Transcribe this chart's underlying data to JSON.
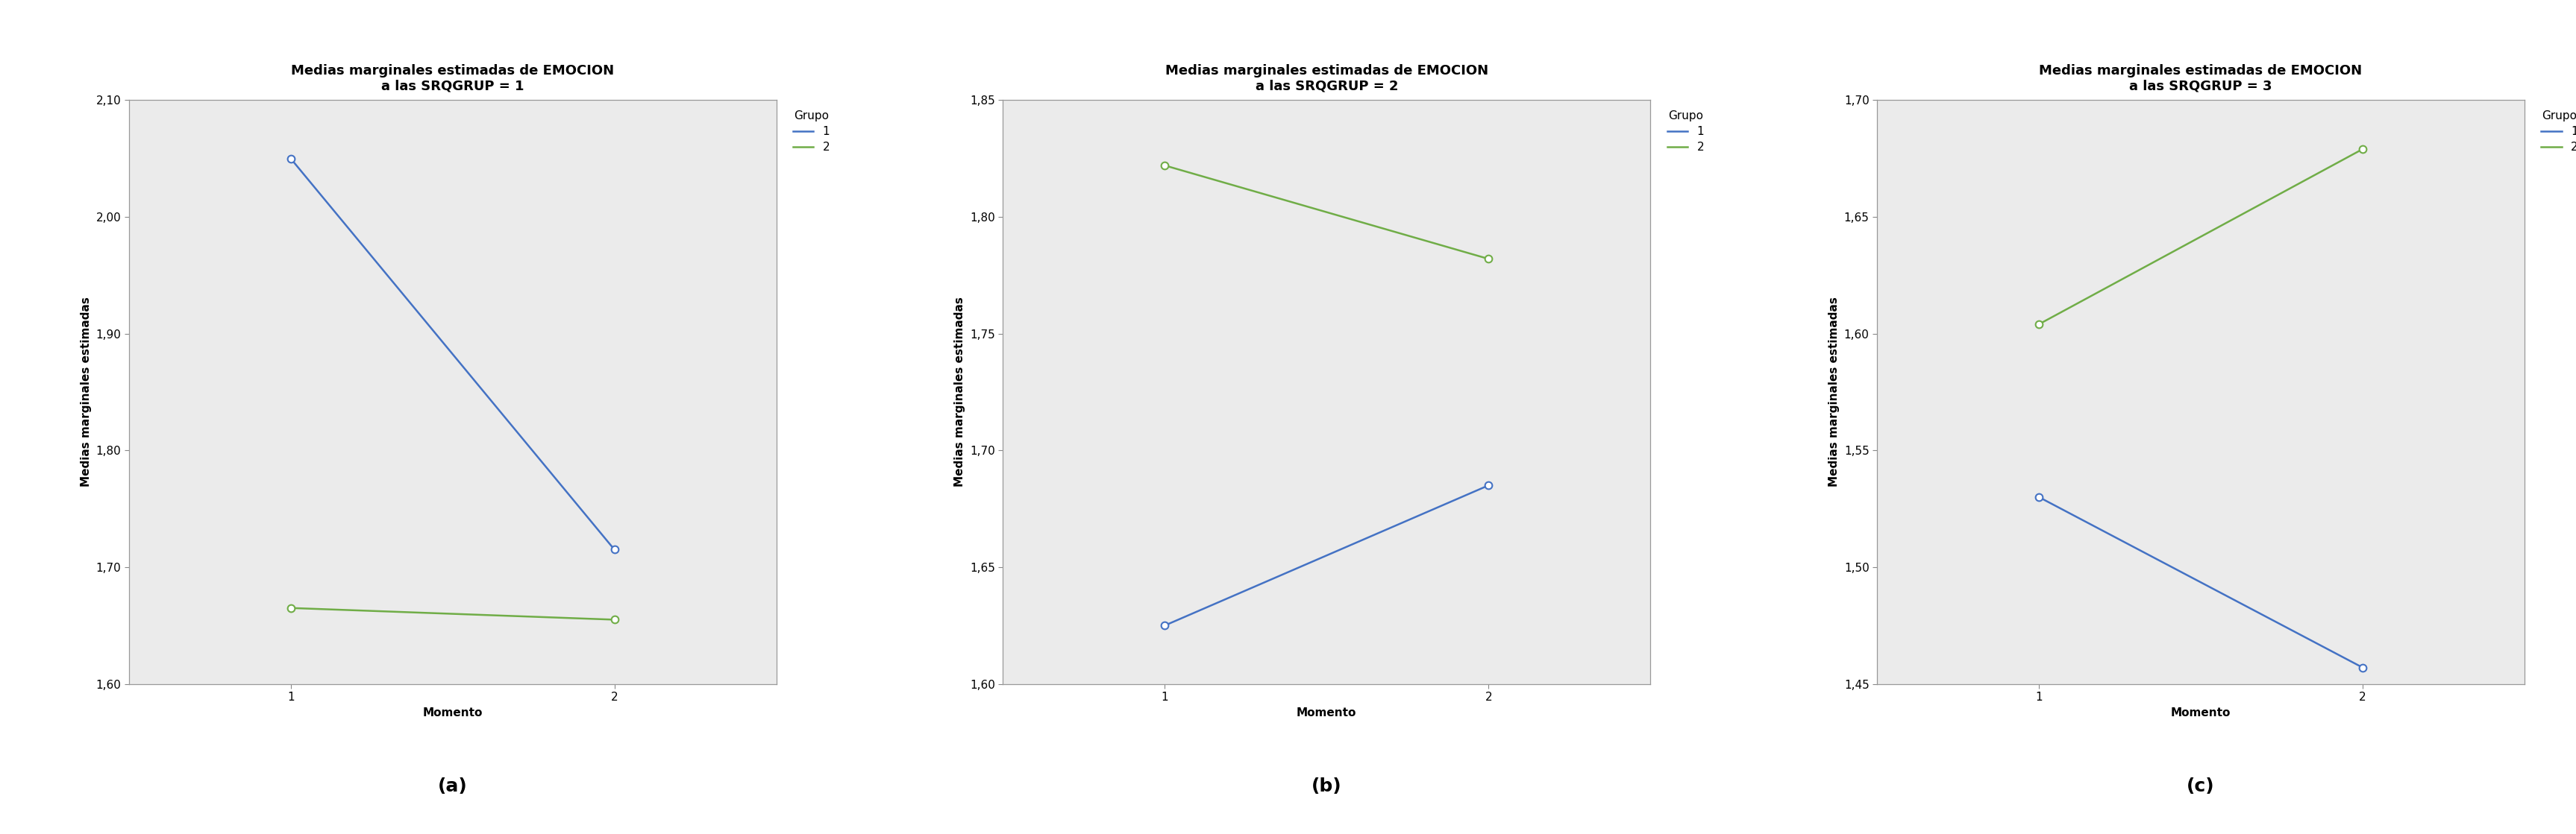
{
  "plots": [
    {
      "title_line1": "Medias marginales estimadas de EMOCION",
      "title_line2": "a las SRQGRUP = 1",
      "xlim": [
        0.5,
        2.5
      ],
      "ylim": [
        1.6,
        2.1
      ],
      "yticks": [
        1.6,
        1.7,
        1.8,
        1.9,
        2.0,
        2.1
      ],
      "group1": [
        2.05,
        1.715
      ],
      "group2": [
        1.665,
        1.655
      ],
      "label": "(a)"
    },
    {
      "title_line1": "Medias marginales estimadas de EMOCION",
      "title_line2": "a las SRQGRUP = 2",
      "xlim": [
        0.5,
        2.5
      ],
      "ylim": [
        1.6,
        1.85
      ],
      "yticks": [
        1.6,
        1.65,
        1.7,
        1.75,
        1.8,
        1.85
      ],
      "group1": [
        1.625,
        1.685
      ],
      "group2": [
        1.822,
        1.782
      ],
      "label": "(b)"
    },
    {
      "title_line1": "Medias marginales estimadas de EMOCION",
      "title_line2": "a las SRQGRUP = 3",
      "xlim": [
        0.5,
        2.5
      ],
      "ylim": [
        1.45,
        1.7
      ],
      "yticks": [
        1.45,
        1.5,
        1.55,
        1.6,
        1.65,
        1.7
      ],
      "group1": [
        1.53,
        1.457
      ],
      "group2": [
        1.604,
        1.679
      ],
      "label": "(c)"
    }
  ],
  "xlabel": "Momento",
  "ylabel": "Medias marginales estimadas",
  "xticks": [
    1,
    2
  ],
  "color_group1": "#4472C4",
  "color_group2": "#70AD47",
  "legend_title": "Grupo",
  "bg_color": "#E8E8E8",
  "plot_bg": "#EBEBEB",
  "title_fontsize": 13,
  "subtitle_fontsize": 12,
  "axis_label_fontsize": 11,
  "tick_fontsize": 11,
  "legend_fontsize": 11,
  "caption_fontsize": 18
}
